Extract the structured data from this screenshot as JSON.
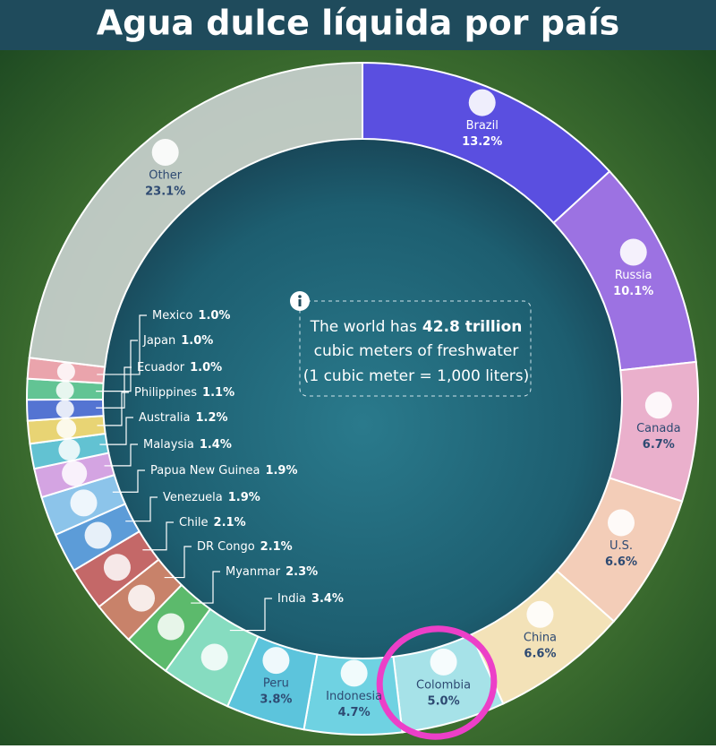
{
  "chart_data": {
    "type": "donut",
    "title": "Agua dulce líquida por país",
    "annotation": {
      "line1": "The world has",
      "highlight": "42.8 trillion",
      "line2": "cubic meters of freshwater",
      "line3": "(1 cubic meter = 1,000 liters)"
    },
    "categories": [
      "Brazil",
      "Russia",
      "Canada",
      "U.S.",
      "China",
      "Colombia",
      "Indonesia",
      "Peru",
      "India",
      "Myanmar",
      "DR Congo",
      "Chile",
      "Venezuela",
      "Papua New Guinea",
      "Malaysia",
      "Australia",
      "Philippines",
      "Ecuador",
      "Japan",
      "Mexico",
      "Other"
    ],
    "values": [
      13.2,
      10.1,
      6.7,
      6.6,
      6.6,
      5.0,
      4.7,
      3.8,
      3.4,
      2.3,
      2.1,
      2.1,
      1.9,
      1.9,
      1.4,
      1.2,
      1.1,
      1.0,
      1.0,
      1.0,
      23.1
    ],
    "value_labels": [
      "13.2%",
      "10.1%",
      "6.7%",
      "6.6%",
      "6.6%",
      "5.0%",
      "4.7%",
      "3.8%",
      "3.4%",
      "2.3%",
      "2.1%",
      "2.1%",
      "1.9%",
      "1.9%",
      "1.4%",
      "1.2%",
      "1.1%",
      "1.0%",
      "1.0%",
      "1.0%",
      "23.1%"
    ],
    "colors": [
      "#5a4fe0",
      "#9c72e2",
      "#eab0cc",
      "#f3cdb8",
      "#f3e2b8",
      "#a6e2e8",
      "#6fd2e2",
      "#5cc4dc",
      "#86dcc0",
      "#5cba6c",
      "#c8826a",
      "#c46868",
      "#5c9cd8",
      "#8cc4ea",
      "#d4a4e2",
      "#62c2d2",
      "#e8d474",
      "#5474d2",
      "#62c494",
      "#eaa4ac",
      "#d4d8da"
    ]
  }
}
